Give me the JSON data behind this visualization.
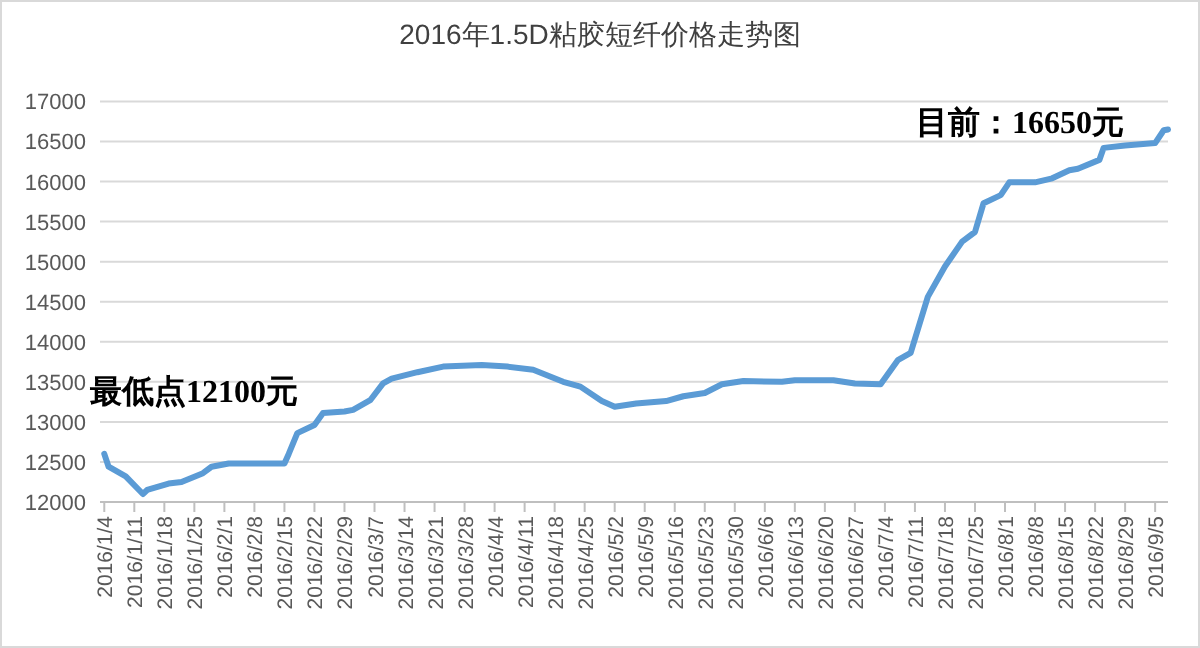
{
  "chart_data": {
    "type": "line",
    "title": "2016年1.5D粘胶短纤价格走势图",
    "x": [
      "2016-01-04",
      "2016-01-05",
      "2016-01-09",
      "2016-01-13",
      "2016-01-14",
      "2016-01-19",
      "2016-01-22",
      "2016-01-27",
      "2016-01-29",
      "2016-02-02",
      "2016-02-15",
      "2016-02-16",
      "2016-02-18",
      "2016-02-22",
      "2016-02-24",
      "2016-02-29",
      "2016-03-02",
      "2016-03-06",
      "2016-03-09",
      "2016-03-11",
      "2016-03-17",
      "2016-03-23",
      "2016-04-01",
      "2016-04-07",
      "2016-04-13",
      "2016-04-20",
      "2016-04-24",
      "2016-04-29",
      "2016-05-02",
      "2016-05-07",
      "2016-05-14",
      "2016-05-18",
      "2016-05-23",
      "2016-05-27",
      "2016-06-01",
      "2016-06-10",
      "2016-06-13",
      "2016-06-22",
      "2016-06-27",
      "2016-07-03",
      "2016-07-05",
      "2016-07-07",
      "2016-07-10",
      "2016-07-14",
      "2016-07-18",
      "2016-07-22",
      "2016-07-25",
      "2016-07-27",
      "2016-07-31",
      "2016-08-02",
      "2016-08-08",
      "2016-08-12",
      "2016-08-16",
      "2016-08-18",
      "2016-08-23",
      "2016-08-24",
      "2016-08-29",
      "2016-09-05",
      "2016-09-07",
      "2016-09-08"
    ],
    "series": [
      {
        "color": "#5b9bd5",
        "values": [
          12600,
          12440,
          12320,
          12100,
          12150,
          12230,
          12250,
          12360,
          12440,
          12480,
          12480,
          12600,
          12860,
          12960,
          13110,
          13130,
          13150,
          13270,
          13480,
          13540,
          13620,
          13690,
          13710,
          13690,
          13650,
          13500,
          13440,
          13260,
          13190,
          13230,
          13260,
          13320,
          13360,
          13470,
          13510,
          13500,
          13520,
          13520,
          13480,
          13470,
          13620,
          13770,
          13860,
          14560,
          14940,
          15250,
          15370,
          15730,
          15830,
          15990,
          15990,
          16040,
          16140,
          16160,
          16270,
          16420,
          16450,
          16480,
          16640,
          16650
        ]
      }
    ],
    "xlim": [
      "2016-01-03",
      "2016-09-08"
    ],
    "xticks": [
      {
        "value": "2016-01-04",
        "label": "2016/1/4"
      },
      {
        "value": "2016-01-11",
        "label": "2016/1/11"
      },
      {
        "value": "2016-01-18",
        "label": "2016/1/18"
      },
      {
        "value": "2016-01-25",
        "label": "2016/1/25"
      },
      {
        "value": "2016-02-01",
        "label": "2016/2/1"
      },
      {
        "value": "2016-02-08",
        "label": "2016/2/8"
      },
      {
        "value": "2016-02-15",
        "label": "2016/2/15"
      },
      {
        "value": "2016-02-22",
        "label": "2016/2/22"
      },
      {
        "value": "2016-02-29",
        "label": "2016/2/29"
      },
      {
        "value": "2016-03-07",
        "label": "2016/3/7"
      },
      {
        "value": "2016-03-14",
        "label": "2016/3/14"
      },
      {
        "value": "2016-03-21",
        "label": "2016/3/21"
      },
      {
        "value": "2016-03-28",
        "label": "2016/3/28"
      },
      {
        "value": "2016-04-04",
        "label": "2016/4/4"
      },
      {
        "value": "2016-04-11",
        "label": "2016/4/11"
      },
      {
        "value": "2016-04-18",
        "label": "2016/4/18"
      },
      {
        "value": "2016-04-25",
        "label": "2016/4/25"
      },
      {
        "value": "2016-05-02",
        "label": "2016/5/2"
      },
      {
        "value": "2016-05-09",
        "label": "2016/5/9"
      },
      {
        "value": "2016-05-16",
        "label": "2016/5/16"
      },
      {
        "value": "2016-05-23",
        "label": "2016/5/23"
      },
      {
        "value": "2016-05-30",
        "label": "2016/5/30"
      },
      {
        "value": "2016-06-06",
        "label": "2016/6/6"
      },
      {
        "value": "2016-06-13",
        "label": "2016/6/13"
      },
      {
        "value": "2016-06-20",
        "label": "2016/6/20"
      },
      {
        "value": "2016-06-27",
        "label": "2016/6/27"
      },
      {
        "value": "2016-07-04",
        "label": "2016/7/4"
      },
      {
        "value": "2016-07-11",
        "label": "2016/7/11"
      },
      {
        "value": "2016-07-18",
        "label": "2016/7/18"
      },
      {
        "value": "2016-07-25",
        "label": "2016/7/25"
      },
      {
        "value": "2016-08-01",
        "label": "2016/8/1"
      },
      {
        "value": "2016-08-08",
        "label": "2016/8/8"
      },
      {
        "value": "2016-08-15",
        "label": "2016/8/15"
      },
      {
        "value": "2016-08-22",
        "label": "2016/8/22"
      },
      {
        "value": "2016-08-29",
        "label": "2016/8/29"
      },
      {
        "value": "2016-09-05",
        "label": "2016/9/5"
      }
    ],
    "ylim": [
      12000,
      17000
    ],
    "yticks": [
      12000,
      12500,
      13000,
      13500,
      14000,
      14500,
      15000,
      15500,
      16000,
      16500,
      17000
    ],
    "grid": "y",
    "marker": "none",
    "line_style": "solid",
    "annotations": [
      {
        "text": "最低点12100元",
        "x": "2016-01-13",
        "y": 12100
      },
      {
        "text": "目前：16650元",
        "x": "2016-09-08",
        "y": 16650
      }
    ]
  }
}
